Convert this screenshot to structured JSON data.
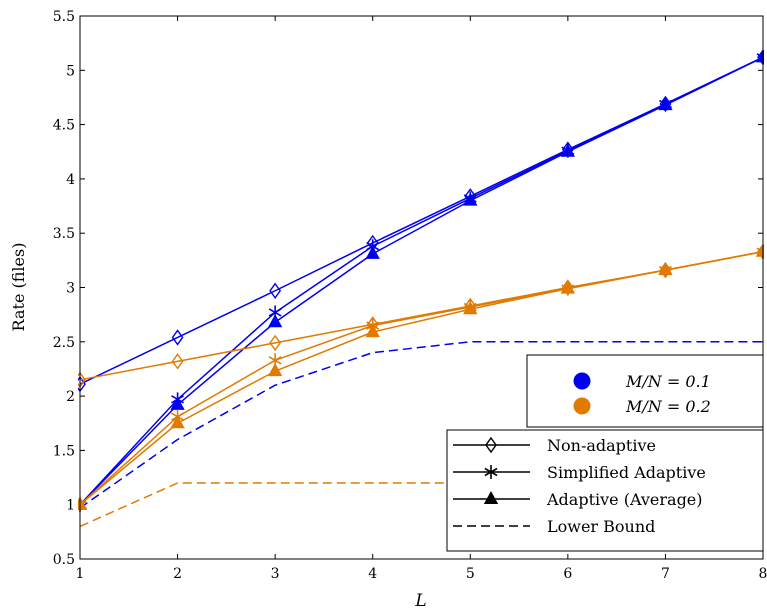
{
  "chart_data": {
    "type": "line",
    "xlabel": "L",
    "ylabel": "Rate (files)",
    "xlim": [
      1,
      8
    ],
    "ylim": [
      0.5,
      5.5
    ],
    "xticks": [
      "1",
      "2",
      "3",
      "4",
      "5",
      "6",
      "7",
      "8"
    ],
    "yticks": [
      "0.5",
      "1",
      "1.5",
      "2",
      "2.5",
      "3",
      "3.5",
      "4",
      "4.5",
      "5",
      "5.5"
    ],
    "grid": false,
    "colors": {
      "blue": "#0000ee",
      "orange": "#e07b00"
    },
    "color_legend": [
      {
        "label": "M/N = 0.1",
        "color": "#0000ee"
      },
      {
        "label": "M/N = 0.2",
        "color": "#e07b00"
      }
    ],
    "style_legend": [
      {
        "label": "Non-adaptive",
        "marker": "diamond",
        "dash": false
      },
      {
        "label": "Simplified Adaptive",
        "marker": "asterisk",
        "dash": false
      },
      {
        "label": "Adaptive (Average)",
        "marker": "triangle",
        "dash": false
      },
      {
        "label": "Lower Bound",
        "marker": "none",
        "dash": true
      }
    ],
    "x": [
      1,
      2,
      3,
      4,
      5,
      6,
      7,
      8
    ],
    "series": [
      {
        "color": "#0000ee",
        "marker": "diamond",
        "dash": false,
        "values": [
          2.11,
          2.54,
          2.97,
          3.41,
          3.84,
          4.27,
          4.69,
          5.12
        ]
      },
      {
        "color": "#0000ee",
        "marker": "asterisk",
        "dash": false,
        "values": [
          1.0,
          1.97,
          2.77,
          3.38,
          3.82,
          4.26,
          4.69,
          5.12
        ]
      },
      {
        "color": "#0000ee",
        "marker": "triangle",
        "dash": false,
        "values": [
          1.0,
          1.92,
          2.68,
          3.31,
          3.8,
          4.25,
          4.68,
          5.12
        ]
      },
      {
        "color": "#0000ee",
        "marker": "none",
        "dash": true,
        "values": [
          0.97,
          1.6,
          2.1,
          2.4,
          2.5,
          2.5,
          2.5,
          2.5
        ]
      },
      {
        "color": "#e07b00",
        "marker": "diamond",
        "dash": false,
        "values": [
          2.15,
          2.32,
          2.49,
          2.66,
          2.83,
          3.0,
          3.16,
          3.33
        ]
      },
      {
        "color": "#e07b00",
        "marker": "asterisk",
        "dash": false,
        "values": [
          1.0,
          1.81,
          2.33,
          2.65,
          2.82,
          2.99,
          3.16,
          3.33
        ]
      },
      {
        "color": "#e07b00",
        "marker": "triangle",
        "dash": false,
        "values": [
          1.0,
          1.75,
          2.23,
          2.59,
          2.8,
          2.99,
          3.16,
          3.33
        ]
      },
      {
        "color": "#e07b00",
        "marker": "none",
        "dash": true,
        "values": [
          0.8,
          1.2,
          1.2,
          1.2,
          1.2,
          1.2,
          1.2,
          1.2
        ]
      }
    ]
  }
}
